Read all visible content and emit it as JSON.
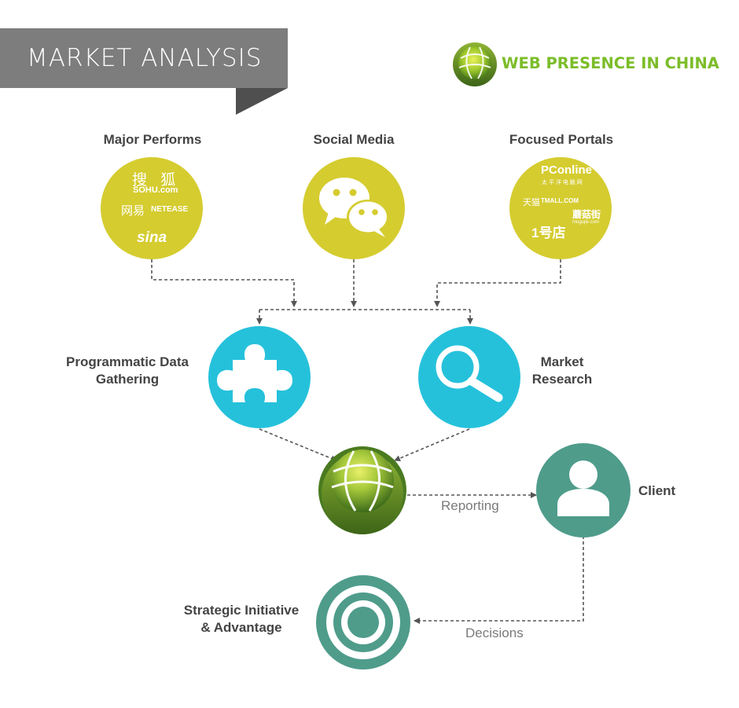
{
  "header": {
    "title": "MARKET ANALYSIS",
    "brand_name": "WEB PRESENCE IN CHINA"
  },
  "categories": {
    "major_performs": {
      "label": "Major Performs",
      "logos": [
        "搜 狐",
        "SOHU.com",
        "网易",
        "NETEASE",
        "sina"
      ]
    },
    "social_media": {
      "label": "Social Media"
    },
    "focused_portals": {
      "label": "Focused Portals",
      "logos": [
        "PConline",
        "太 平 洋 电 脑 网",
        "天猫",
        "TMALL.COM",
        "蘑菇街",
        "mogujie.com",
        "1号店"
      ]
    }
  },
  "nodes": {
    "programmatic": "Programmatic Data\nGathering",
    "market_research": "Market\nResearch",
    "client": "Client",
    "strategic": "Strategic Initiative\n& Advantage"
  },
  "flows": {
    "reporting": "Reporting",
    "decisions": "Decisions"
  },
  "colors": {
    "yellow": "#d5cc30",
    "cyan": "#25c1db",
    "teal": "#4f9c8b",
    "banner": "#7d7d7d",
    "brand_green": "#7cbd2a"
  }
}
